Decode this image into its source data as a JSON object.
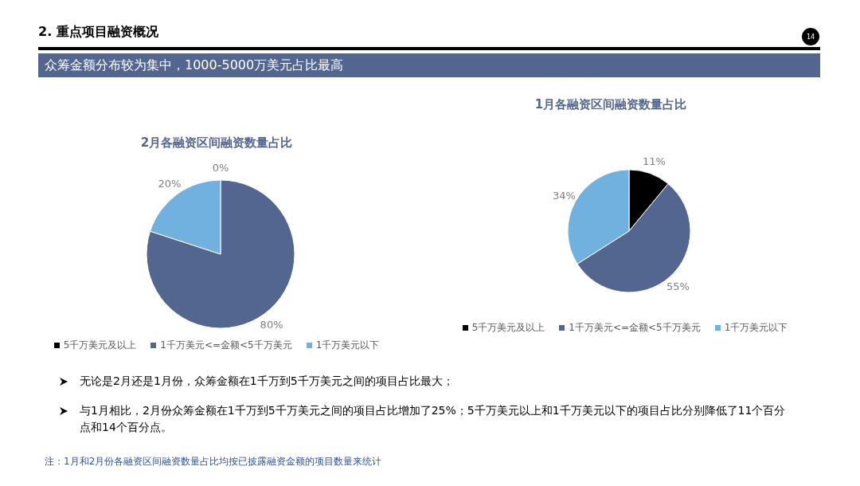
{
  "chart_data": [
    {
      "type": "other",
      "title": "2. 重点项目融资概况",
      "subtitle": "众筹金额分布较为集中，1000-5000万美元占比最高",
      "annotations": [
        "14",
        "无论是2月还是1月份，众筹金额在1千万到5千万美元之间的项目占比最大；",
        "与1月相比，2月份众筹金额在1千万到5千万美元之间的项目占比增加了25%；5千万美元以上和1千万美元以下的项目占比分别降低了11个百分点和14个百分点。",
        "注：1月和2月份各融资区间融资数量占比均按已披露融资金额的项目数量来统计"
      ]
    },
    {
      "type": "pie",
      "title": "2月各融资区间融资数量占比",
      "categories": [
        "5千万美元及以上",
        "1千万美元<=金额<5千万美元",
        "1千万美元以下"
      ],
      "values": [
        0,
        80,
        20
      ],
      "colors": [
        "#000000",
        "#53668f",
        "#70b1df"
      ],
      "value_labels": [
        "0%",
        "80%",
        "20%"
      ],
      "legend": "bottom"
    },
    {
      "type": "pie",
      "title": "1月各融资区间融资数量占比",
      "categories": [
        "5千万美元及以上",
        "1千万美元<=金额<5千万美元",
        "1千万美元以下"
      ],
      "values": [
        11,
        55,
        34
      ],
      "colors": [
        "#000000",
        "#53668f",
        "#70b1df"
      ],
      "value_labels": [
        "11%",
        "55%",
        "34%"
      ],
      "legend": "bottom"
    }
  ]
}
